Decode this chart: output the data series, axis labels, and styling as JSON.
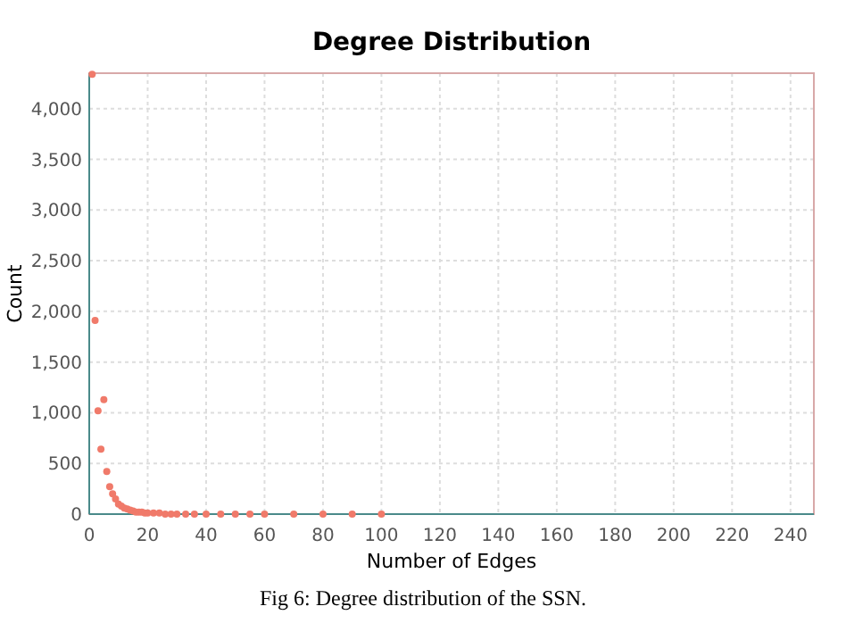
{
  "chart_data": {
    "type": "scatter",
    "title": "Degree Distribution",
    "xlabel": "Number of Edges",
    "ylabel": "Count",
    "annotations": [
      "Fig 6: Degree distribution of the SSN."
    ],
    "series": [
      {
        "color": "#f07a6a",
        "x": [
          1,
          2,
          3,
          4,
          5,
          6,
          7,
          8,
          9,
          10,
          11,
          12,
          13,
          14,
          15,
          16,
          17,
          18,
          19,
          20,
          22,
          24,
          26,
          28,
          30,
          33,
          36,
          40,
          45,
          50,
          55,
          60,
          70,
          80,
          90,
          100
        ],
        "values": [
          4340,
          1910,
          1020,
          640,
          1130,
          420,
          270,
          200,
          150,
          100,
          80,
          60,
          50,
          40,
          30,
          20,
          20,
          20,
          10,
          10,
          10,
          10,
          0,
          0,
          0,
          0,
          0,
          0,
          0,
          0,
          0,
          0,
          0,
          0,
          0,
          0
        ]
      }
    ],
    "xlim": [
      0,
      248
    ],
    "xticks": [
      0,
      20,
      40,
      60,
      80,
      100,
      120,
      140,
      160,
      180,
      200,
      220,
      240
    ],
    "ylim": [
      0,
      4350
    ],
    "yticks": [
      {
        "value": 0,
        "label": "0"
      },
      {
        "value": 500,
        "label": "500"
      },
      {
        "value": 1000,
        "label": "1,000"
      },
      {
        "value": 1500,
        "label": "1,500"
      },
      {
        "value": 2000,
        "label": "2,000"
      },
      {
        "value": 2500,
        "label": "2,500"
      },
      {
        "value": 3000,
        "label": "3,000"
      },
      {
        "value": 3500,
        "label": "3,500"
      },
      {
        "value": 4000,
        "label": "4,000"
      }
    ],
    "grid": true,
    "marker": "circle"
  }
}
